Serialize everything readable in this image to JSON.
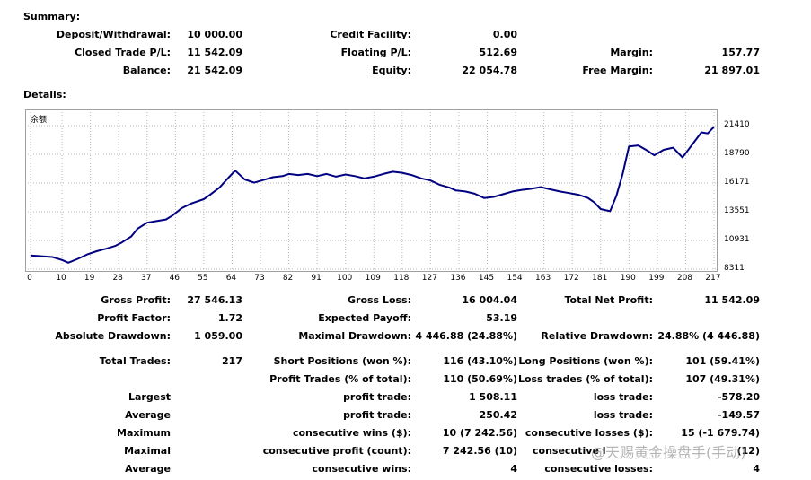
{
  "summary": {
    "title": "Summary:",
    "deposit_label": "Deposit/Withdrawal:",
    "deposit_value": "10 000.00",
    "closed_label": "Closed Trade P/L:",
    "closed_value": "11 542.09",
    "balance_label": "Balance:",
    "balance_value": "21 542.09",
    "credit_label": "Credit Facility:",
    "credit_value": "0.00",
    "floating_label": "Floating P/L:",
    "floating_value": "512.69",
    "equity_label": "Equity:",
    "equity_value": "22 054.78",
    "margin_label": "Margin:",
    "margin_value": "157.77",
    "free_margin_label": "Free Margin:",
    "free_margin_value": "21 897.01"
  },
  "details": {
    "title": "Details:",
    "gross_profit_label": "Gross Profit:",
    "gross_profit_value": "27 546.13",
    "gross_loss_label": "Gross Loss:",
    "gross_loss_value": "16 004.04",
    "net_profit_label": "Total Net Profit:",
    "net_profit_value": "11 542.09",
    "profit_factor_label": "Profit Factor:",
    "profit_factor_value": "1.72",
    "expected_payoff_label": "Expected Payoff:",
    "expected_payoff_value": "53.19",
    "abs_dd_label": "Absolute Drawdown:",
    "abs_dd_value": "1 059.00",
    "max_dd_label": "Maximal Drawdown:",
    "max_dd_value": "4 446.88 (24.88%)",
    "rel_dd_label": "Relative Drawdown:",
    "rel_dd_value": "24.88% (4 446.88)",
    "total_trades_label": "Total Trades:",
    "total_trades_value": "217",
    "short_label": "Short Positions (won %):",
    "short_value": "116 (43.10%)",
    "long_label": "Long Positions (won %):",
    "long_value": "101 (59.41%)",
    "profit_trades_label": "Profit Trades (% of total):",
    "profit_trades_value": "110 (50.69%)",
    "loss_trades_label": "Loss trades (% of total):",
    "loss_trades_value": "107 (49.31%)",
    "largest_label": "Largest",
    "largest_profit_label": "profit trade:",
    "largest_profit_value": "1 508.11",
    "largest_loss_label": "loss trade:",
    "largest_loss_value": "-578.20",
    "average_label": "Average",
    "average_profit_label": "profit trade:",
    "average_profit_value": "250.42",
    "average_loss_label": "loss trade:",
    "average_loss_value": "-149.57",
    "maximum_label": "Maximum",
    "max_cons_wins_label": "consecutive wins ($):",
    "max_cons_wins_value": "10 (7 242.56)",
    "max_cons_losses_label": "consecutive losses ($):",
    "max_cons_losses_value": "15 (-1 679.74)",
    "maximal_label": "Maximal",
    "maximal_cons_profit_label": "consecutive profit (count):",
    "maximal_cons_profit_value": "7 242.56 (10)",
    "maximal_cons_loss_label": "consecutive l",
    "maximal_cons_loss_value": "(12)",
    "average2_label": "Average",
    "avg_cons_wins_label": "consecutive wins:",
    "avg_cons_wins_value": "4",
    "avg_cons_losses_label": "consecutive losses:",
    "avg_cons_losses_value": "4"
  },
  "watermark": "@天赐黄金操盘手(手动)",
  "chart_data": {
    "type": "line",
    "corner_label": "余额",
    "line_color": "#000080",
    "grid": true,
    "y_ticks": [
      "21410",
      "18790",
      "16171",
      "13551",
      "10931",
      "8311"
    ],
    "y_tick_values": [
      21410,
      18790,
      16171,
      13551,
      10931,
      8311
    ],
    "x_ticks": [
      "0",
      "10",
      "19",
      "28",
      "37",
      "46",
      "55",
      "64",
      "73",
      "82",
      "91",
      "100",
      "109",
      "118",
      "127",
      "136",
      "145",
      "154",
      "163",
      "172",
      "181",
      "190",
      "199",
      "208",
      "217"
    ],
    "x_tick_values": [
      0,
      10,
      19,
      28,
      37,
      46,
      55,
      64,
      73,
      82,
      91,
      100,
      109,
      118,
      127,
      136,
      145,
      154,
      163,
      172,
      181,
      190,
      199,
      208,
      217
    ],
    "xlim": [
      0,
      217
    ],
    "ylim": [
      8311,
      21410
    ],
    "x": [
      0,
      4,
      7,
      10,
      12,
      15,
      18,
      21,
      24,
      27,
      29,
      32,
      34,
      37,
      40,
      43,
      45,
      48,
      51,
      55,
      57,
      60,
      63,
      65,
      68,
      71,
      74,
      77,
      80,
      82,
      85,
      88,
      91,
      94,
      97,
      100,
      103,
      106,
      109,
      112,
      115,
      118,
      121,
      124,
      127,
      130,
      133,
      135,
      138,
      141,
      144,
      147,
      150,
      153,
      156,
      159,
      162,
      165,
      168,
      171,
      174,
      177,
      179,
      181,
      184,
      186,
      188,
      190,
      193,
      196,
      198,
      201,
      204,
      207,
      210,
      213,
      215,
      217
    ],
    "y": [
      9560,
      9480,
      9420,
      9150,
      8900,
      9250,
      9650,
      9950,
      10180,
      10450,
      10750,
      11300,
      12000,
      12550,
      12700,
      12850,
      13200,
      13880,
      14300,
      14700,
      15100,
      15750,
      16700,
      17300,
      16500,
      16200,
      16450,
      16700,
      16800,
      17000,
      16900,
      17000,
      16800,
      17000,
      16750,
      16950,
      16800,
      16600,
      16750,
      17000,
      17200,
      17100,
      16900,
      16600,
      16400,
      16000,
      15750,
      15500,
      15400,
      15200,
      14800,
      14900,
      15150,
      15400,
      15550,
      15650,
      15800,
      15600,
      15400,
      15250,
      15100,
      14800,
      14400,
      13800,
      13600,
      15000,
      17000,
      19500,
      19600,
      19100,
      18700,
      19200,
      19400,
      18500,
      19650,
      20800,
      20700,
      21300
    ]
  }
}
